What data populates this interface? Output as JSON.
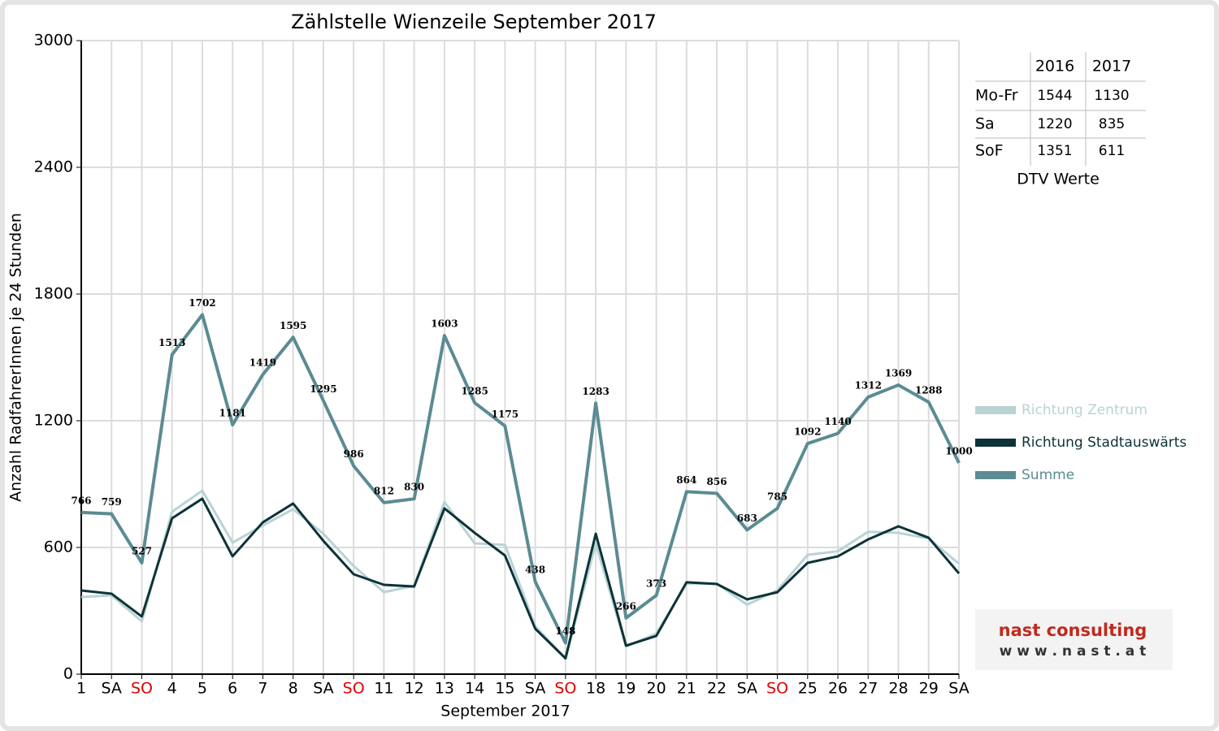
{
  "chart_data": {
    "type": "line",
    "title": "Zählstelle Wienzeile September 2017",
    "x_label": "September 2017",
    "y_label": "Anzahl RadfahrerInnen je 24 Stunden",
    "categories": [
      "1",
      "SA",
      "SO",
      "4",
      "5",
      "6",
      "7",
      "8",
      "SA",
      "SO",
      "11",
      "12",
      "13",
      "14",
      "15",
      "SA",
      "SO",
      "18",
      "19",
      "20",
      "21",
      "22",
      "SA",
      "SO",
      "25",
      "26",
      "27",
      "28",
      "29",
      "SA"
    ],
    "category_colors": [
      "#000000",
      "#000000",
      "#e00000",
      "#000000",
      "#000000",
      "#000000",
      "#000000",
      "#000000",
      "#000000",
      "#e00000",
      "#000000",
      "#000000",
      "#000000",
      "#000000",
      "#000000",
      "#000000",
      "#e00000",
      "#000000",
      "#000000",
      "#000000",
      "#000000",
      "#000000",
      "#000000",
      "#e00000",
      "#000000",
      "#000000",
      "#000000",
      "#000000",
      "#000000",
      "#000000"
    ],
    "series": [
      {
        "name": "Richtung Zentrum",
        "color": "#b9d3d5",
        "values": [
          365,
          373,
          250,
          769,
          869,
          623,
          704,
          781,
          665,
          512,
          388,
          419,
          815,
          619,
          612,
          227,
          73,
          618,
          131,
          192,
          429,
          429,
          329,
          397,
          565,
          582,
          674,
          669,
          642,
          523
        ]
      },
      {
        "name": "Richtung Stadtauswärts",
        "color": "#0c3338",
        "values": [
          396,
          381,
          273,
          738,
          831,
          558,
          719,
          808,
          631,
          473,
          423,
          415,
          785,
          669,
          562,
          215,
          75,
          665,
          135,
          181,
          435,
          427,
          354,
          388,
          527,
          558,
          638,
          700,
          646,
          477
        ]
      },
      {
        "name": "Summe",
        "color": "#5b8b93",
        "show_values": true,
        "values": [
          766,
          759,
          527,
          1513,
          1702,
          1181,
          1419,
          1595,
          1295,
          986,
          812,
          830,
          1603,
          1285,
          1175,
          438,
          148,
          1283,
          266,
          373,
          864,
          856,
          683,
          785,
          1092,
          1140,
          1312,
          1369,
          1288,
          1000
        ]
      }
    ],
    "ylim": [
      0,
      3000
    ],
    "yticks": [
      0,
      600,
      1200,
      1800,
      2400,
      3000
    ],
    "grid": true,
    "legend": "right"
  },
  "dtv_table": {
    "header": [
      "2016",
      "2017"
    ],
    "rows": [
      [
        "Mo-Fr",
        "1544",
        "1130"
      ],
      [
        "Sa",
        "1220",
        "835"
      ],
      [
        "SoF",
        "1351",
        "611"
      ]
    ],
    "caption": "DTV Werte"
  },
  "logo": {
    "name": "nast consulting",
    "url": "w w w . n a s t . a t"
  }
}
